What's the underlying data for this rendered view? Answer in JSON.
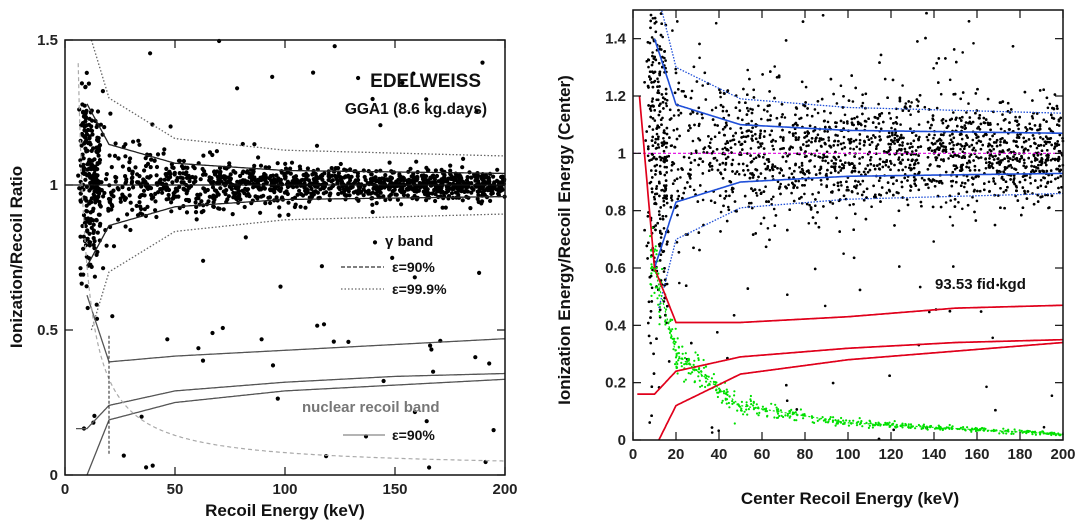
{
  "chart_data": [
    {
      "type": "scatter",
      "xlabel": "Recoil Energy (keV)",
      "ylabel": "Ionization/Recoil Ratio",
      "xlim": [
        0,
        200
      ],
      "ylim": [
        0,
        1.5
      ],
      "xticks": [
        "0",
        "50",
        "100",
        "150",
        "200"
      ],
      "yticks": [
        "0",
        "0.5",
        "1",
        "1.5"
      ],
      "annotations": {
        "title": "EDELWEISS",
        "subtitle": "GGA1 (8.6 kg.days)",
        "gamma_band": "γ band",
        "gamma_90": "ε=90%",
        "gamma_999": "ε=99.9%",
        "nuclear_band": "nuclear recoil band",
        "nuclear_90": "ε=90%"
      },
      "bands": {
        "gamma_center": 1.0,
        "gamma_90_sigma": [
          [
            10,
            0.28
          ],
          [
            20,
            0.14
          ],
          [
            50,
            0.075
          ],
          [
            100,
            0.05
          ],
          [
            200,
            0.04
          ]
        ],
        "gamma_999_sigma": [
          [
            10,
            0.55
          ],
          [
            20,
            0.3
          ],
          [
            50,
            0.16
          ],
          [
            100,
            0.12
          ],
          [
            200,
            0.1
          ]
        ],
        "nuclear_center": [
          [
            10,
            0.16
          ],
          [
            20,
            0.24
          ],
          [
            50,
            0.29
          ],
          [
            100,
            0.32
          ],
          [
            150,
            0.34
          ],
          [
            200,
            0.35
          ]
        ],
        "nuclear_upper": [
          [
            10,
            0.62
          ],
          [
            20,
            0.39
          ],
          [
            50,
            0.41
          ],
          [
            100,
            0.43
          ],
          [
            150,
            0.45
          ],
          [
            200,
            0.47
          ]
        ],
        "nuclear_lower": [
          [
            10,
            0.0
          ],
          [
            20,
            0.19
          ],
          [
            50,
            0.25
          ],
          [
            100,
            0.29
          ],
          [
            150,
            0.31
          ],
          [
            200,
            0.33
          ]
        ],
        "threshold_keV": 20,
        "n_points": 1500
      }
    },
    {
      "type": "scatter",
      "xlabel": "Center Recoil Energy (keV)",
      "ylabel": "Ionization Energy/Recoil Energy (Center)",
      "xlim": [
        0,
        200
      ],
      "ylim": [
        0,
        1.5
      ],
      "xticks": [
        "0",
        "20",
        "40",
        "60",
        "80",
        "100",
        "120",
        "140",
        "160",
        "180",
        "200"
      ],
      "yticks": [
        "0",
        "0.2",
        "0.4",
        "0.6",
        "0.8",
        "1",
        "1.2",
        "1.4"
      ],
      "annotations": {
        "exposure": "93.53 fid kgd"
      },
      "colors": {
        "gamma_band": "#1f4fd8",
        "nuclear_band": "#e0001b",
        "center_line": "#e000e0",
        "heat_only": "#00e000",
        "points": "#000000"
      },
      "bands": {
        "gamma_center": 1.0,
        "gamma_sigma": [
          [
            10,
            0.4
          ],
          [
            20,
            0.17
          ],
          [
            50,
            0.1
          ],
          [
            100,
            0.08
          ],
          [
            200,
            0.07
          ]
        ],
        "gamma_outer_sigma": [
          [
            10,
            0.6
          ],
          [
            20,
            0.3
          ],
          [
            50,
            0.19
          ],
          [
            100,
            0.16
          ],
          [
            200,
            0.14
          ]
        ],
        "nuclear_center": [
          [
            10,
            0.16
          ],
          [
            20,
            0.24
          ],
          [
            50,
            0.29
          ],
          [
            100,
            0.32
          ],
          [
            150,
            0.34
          ],
          [
            200,
            0.35
          ]
        ],
        "nuclear_upper": [
          [
            3,
            1.2
          ],
          [
            10,
            0.6
          ],
          [
            20,
            0.41
          ],
          [
            50,
            0.41
          ],
          [
            100,
            0.43
          ],
          [
            150,
            0.46
          ],
          [
            200,
            0.47
          ]
        ],
        "nuclear_lower": [
          [
            12,
            0.0
          ],
          [
            20,
            0.12
          ],
          [
            50,
            0.23
          ],
          [
            100,
            0.28
          ],
          [
            150,
            0.31
          ],
          [
            200,
            0.34
          ]
        ],
        "heat_only_band": [
          [
            10,
            0.6
          ],
          [
            20,
            0.3
          ],
          [
            50,
            0.12
          ],
          [
            100,
            0.06
          ],
          [
            200,
            0.02
          ]
        ],
        "n_points": 3500
      }
    }
  ]
}
